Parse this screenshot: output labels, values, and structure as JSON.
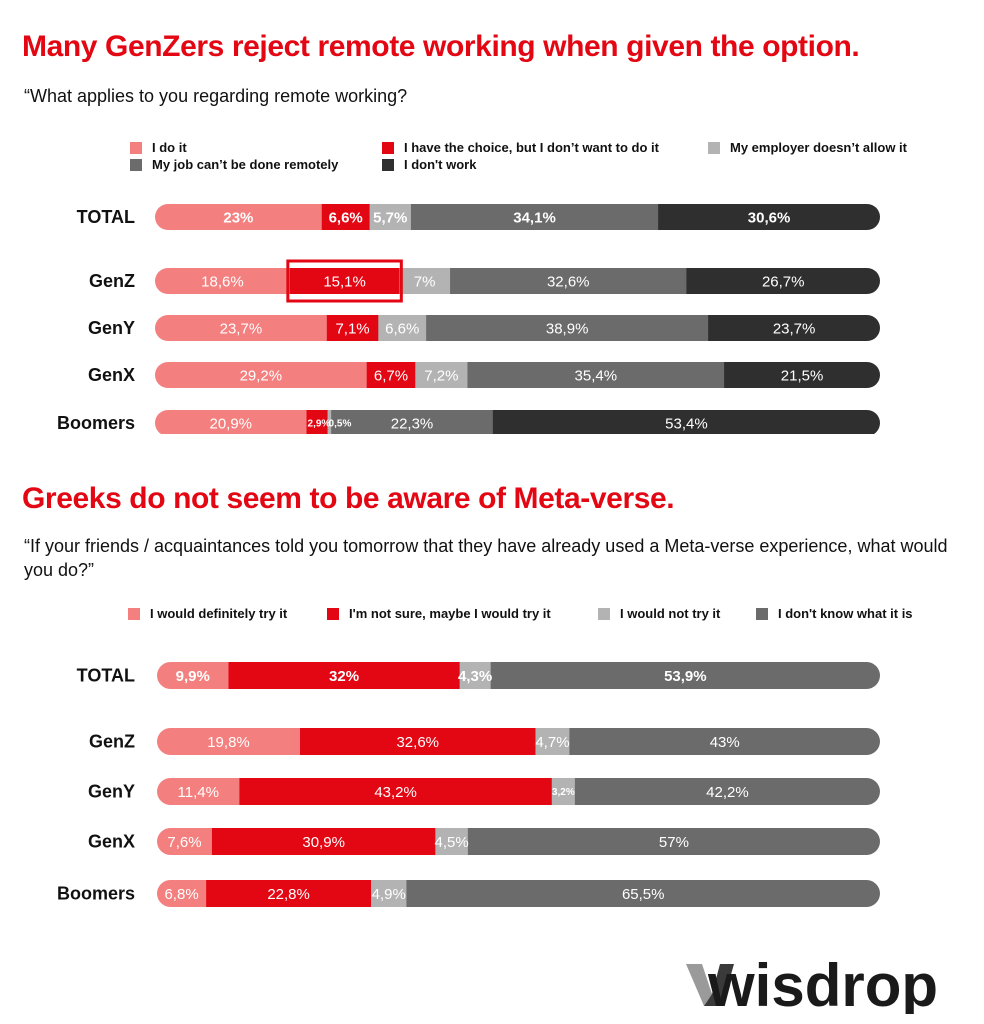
{
  "chart_data": [
    {
      "type": "bar",
      "orientation": "horizontal",
      "stacked": true,
      "title": "Many GenZers reject remote working when given the option.",
      "subtitle": "“What applies to you regarding remote working?",
      "categories": [
        "TOTAL",
        "GenZ",
        "GenY",
        "GenX",
        "Boomers"
      ],
      "series": [
        {
          "name": "I do it",
          "color": "#f47f7f",
          "values": [
            23,
            18.6,
            23.7,
            29.2,
            20.9
          ],
          "labels": [
            "23%",
            "18,6%",
            "23,7%",
            "29,2%",
            "20,9%"
          ]
        },
        {
          "name": "I have the choice, but I don’t want to do it",
          "color": "#e30613",
          "values": [
            6.6,
            15.1,
            7.1,
            6.7,
            2.9
          ],
          "labels": [
            "6,6%",
            "15,1%",
            "7,1%",
            "6,7%",
            "2,9%"
          ]
        },
        {
          "name": "My employer doesn’t allow it",
          "color": "#b3b3b3",
          "values": [
            5.7,
            7,
            6.6,
            7.2,
            0.5
          ],
          "labels": [
            "5,7%",
            "7%",
            "6,6%",
            "7,2%",
            "0,5%"
          ]
        },
        {
          "name": "My job can’t be done remotely",
          "color": "#6b6b6b",
          "values": [
            34.1,
            32.6,
            38.9,
            35.4,
            22.3
          ],
          "labels": [
            "34,1%",
            "32,6%",
            "38,9%",
            "35,4%",
            "22,3%"
          ]
        },
        {
          "name": "I don't work",
          "color": "#2f2f2f",
          "values": [
            30.6,
            26.7,
            23.7,
            21.5,
            53.4
          ],
          "labels": [
            "30,6%",
            "26,7%",
            "23,7%",
            "21,5%",
            "53,4%"
          ]
        }
      ],
      "highlight": {
        "category": "GenZ",
        "series": "I have the choice, but I don’t want to do it",
        "color": "#e30613"
      },
      "legend_position": "top",
      "grid": false
    },
    {
      "type": "bar",
      "orientation": "horizontal",
      "stacked": true,
      "title": "Greeks do not seem to be aware of Meta-verse.",
      "subtitle": "“If your friends / acquaintances told you tomorrow that they have already used a Meta-verse experience, what would you do?”",
      "categories": [
        "TOTAL",
        "GenZ",
        "GenY",
        "GenX",
        "Boomers"
      ],
      "series": [
        {
          "name": "I would definitely try it",
          "color": "#f47f7f",
          "values": [
            9.9,
            19.8,
            11.4,
            7.6,
            6.8
          ],
          "labels": [
            "9,9%",
            "19,8%",
            "11,4%",
            "7,6%",
            "6,8%"
          ]
        },
        {
          "name": "I'm not sure, maybe I would try it",
          "color": "#e30613",
          "values": [
            32,
            32.6,
            43.2,
            30.9,
            22.8
          ],
          "labels": [
            "32%",
            "32,6%",
            "43,2%",
            "30,9%",
            "22,8%"
          ]
        },
        {
          "name": "I would not try it",
          "color": "#b3b3b3",
          "values": [
            4.3,
            4.7,
            3.2,
            4.5,
            4.9
          ],
          "labels": [
            "4,3%",
            "4,7%",
            "3,2%",
            "4,5%",
            "4,9%"
          ]
        },
        {
          "name": "I don't know what it is",
          "color": "#6b6b6b",
          "values": [
            53.9,
            43,
            42.2,
            57,
            65.5
          ],
          "labels": [
            "53,9%",
            "43%",
            "42,2%",
            "57%",
            "65,5%"
          ]
        }
      ],
      "legend_position": "top",
      "grid": false
    }
  ],
  "brand": {
    "name": "wisdrop",
    "color": "#1a1a1a"
  }
}
